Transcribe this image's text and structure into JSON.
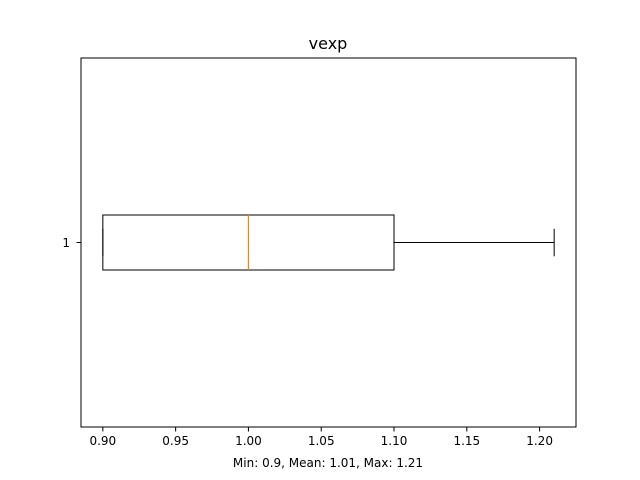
{
  "chart_data": {
    "type": "boxplot",
    "orientation": "horizontal",
    "title": "vexp",
    "xlabel": "Min: 0.9, Mean: 1.01, Max: 1.21",
    "ylabel": "",
    "xlim": [
      0.885,
      1.225
    ],
    "x_ticks": [
      0.9,
      0.95,
      1.0,
      1.05,
      1.1,
      1.15,
      1.2
    ],
    "x_tick_labels": [
      "0.90",
      "0.95",
      "1.00",
      "1.05",
      "1.10",
      "1.15",
      "1.20"
    ],
    "y_tick_labels": [
      "1"
    ],
    "grid": false,
    "boxes": [
      {
        "label": "1",
        "whisker_low": 0.9,
        "q1": 0.9,
        "median": 1.0,
        "q3": 1.1,
        "whisker_high": 1.21
      }
    ],
    "colors": {
      "box": "#000000",
      "median": "#ff7f0e",
      "axes": "#000000",
      "background": "#ffffff"
    }
  }
}
